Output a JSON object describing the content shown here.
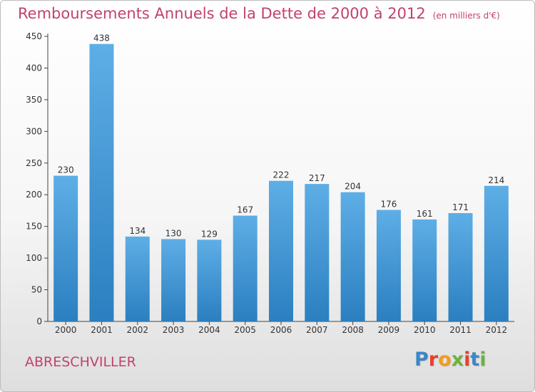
{
  "title": "Remboursements Annuels de la Dette de 2000 à 2012",
  "unit_note": "(en milliers d'€)",
  "commune": "ABRESCHVILLER",
  "brand": {
    "text": "Proxiti",
    "letter_colors": [
      "#3b86c6",
      "#e8402b",
      "#f39c1c",
      "#6cb33e",
      "#e8402b",
      "#3b86c6",
      "#6cb33e"
    ]
  },
  "colors": {
    "bar_top": "#5eaee6",
    "bar_bottom": "#2b7fc0",
    "title": "#c2416e"
  },
  "chart_data": {
    "type": "bar",
    "categories": [
      "2000",
      "2001",
      "2002",
      "2003",
      "2004",
      "2005",
      "2006",
      "2007",
      "2008",
      "2009",
      "2010",
      "2011",
      "2012"
    ],
    "values": [
      230,
      438,
      134,
      130,
      129,
      167,
      222,
      217,
      204,
      176,
      161,
      171,
      214
    ],
    "ylim": [
      0,
      450
    ],
    "yticks": [
      0,
      50,
      100,
      150,
      200,
      250,
      300,
      350,
      400,
      450
    ],
    "xlabel": "",
    "ylabel": "",
    "grid": false,
    "legend": "none"
  }
}
